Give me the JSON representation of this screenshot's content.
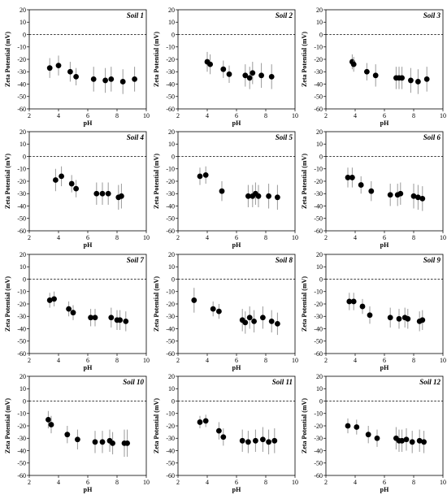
{
  "chart_data": [
    {
      "type": "scatter",
      "title": "Soil 1",
      "xlabel": "pH",
      "ylabel": "Zeta Potential (mV)",
      "xlim": [
        2,
        10
      ],
      "ylim": [
        -60,
        20
      ],
      "xticks": [
        2,
        4,
        6,
        8,
        10
      ],
      "yticks": [
        -60,
        -50,
        -40,
        -30,
        -20,
        -10,
        0,
        10,
        20
      ],
      "reference_line": 0,
      "points": [
        {
          "x": 3.4,
          "y": -27,
          "err": 8
        },
        {
          "x": 4.0,
          "y": -25,
          "err": 8
        },
        {
          "x": 4.8,
          "y": -30,
          "err": 8
        },
        {
          "x": 5.2,
          "y": -34,
          "err": 7
        },
        {
          "x": 6.4,
          "y": -36,
          "err": 10
        },
        {
          "x": 7.2,
          "y": -37,
          "err": 10
        },
        {
          "x": 7.6,
          "y": -36,
          "err": 10
        },
        {
          "x": 8.4,
          "y": -38,
          "err": 10
        },
        {
          "x": 9.2,
          "y": -36,
          "err": 10
        }
      ]
    },
    {
      "type": "scatter",
      "title": "Soil 2",
      "xlabel": "pH",
      "ylabel": "Zeta Potential (mV)",
      "xlim": [
        2,
        10
      ],
      "ylim": [
        -60,
        20
      ],
      "xticks": [
        2,
        4,
        6,
        8,
        10
      ],
      "yticks": [
        -60,
        -50,
        -40,
        -30,
        -20,
        -10,
        0,
        10,
        20
      ],
      "reference_line": 0,
      "points": [
        {
          "x": 4.0,
          "y": -22,
          "err": 8
        },
        {
          "x": 4.2,
          "y": -24,
          "err": 8
        },
        {
          "x": 5.1,
          "y": -28,
          "err": 7
        },
        {
          "x": 5.5,
          "y": -32,
          "err": 7
        },
        {
          "x": 6.6,
          "y": -33,
          "err": 9
        },
        {
          "x": 6.9,
          "y": -35,
          "err": 9
        },
        {
          "x": 7.1,
          "y": -31,
          "err": 9
        },
        {
          "x": 7.7,
          "y": -33,
          "err": 10
        },
        {
          "x": 8.4,
          "y": -34,
          "err": 10
        }
      ]
    },
    {
      "type": "scatter",
      "title": "Soil 3",
      "xlabel": "pH",
      "ylabel": "Zeta Potential (mV)",
      "xlim": [
        2,
        10
      ],
      "ylim": [
        -60,
        20
      ],
      "xticks": [
        2,
        4,
        6,
        8,
        10
      ],
      "yticks": [
        -60,
        -50,
        -40,
        -30,
        -20,
        -10,
        0,
        10,
        20
      ],
      "reference_line": 0,
      "points": [
        {
          "x": 3.8,
          "y": -22,
          "err": 6
        },
        {
          "x": 3.9,
          "y": -24,
          "err": 6
        },
        {
          "x": 4.8,
          "y": -30,
          "err": 7
        },
        {
          "x": 5.4,
          "y": -33,
          "err": 9
        },
        {
          "x": 6.8,
          "y": -35,
          "err": 9
        },
        {
          "x": 7.0,
          "y": -35,
          "err": 9
        },
        {
          "x": 7.2,
          "y": -35,
          "err": 9
        },
        {
          "x": 7.8,
          "y": -37,
          "err": 10
        },
        {
          "x": 8.3,
          "y": -38,
          "err": 10
        },
        {
          "x": 8.9,
          "y": -36,
          "err": 10
        }
      ]
    },
    {
      "type": "scatter",
      "title": "Soil 4",
      "xlabel": "pH",
      "ylabel": "Zeta Potential (mV)",
      "xlim": [
        2,
        10
      ],
      "ylim": [
        -60,
        20
      ],
      "xticks": [
        2,
        4,
        6,
        8,
        10
      ],
      "yticks": [
        -60,
        -50,
        -40,
        -30,
        -20,
        -10,
        0,
        10,
        20
      ],
      "reference_line": 0,
      "points": [
        {
          "x": 3.8,
          "y": -19,
          "err": 9
        },
        {
          "x": 4.2,
          "y": -16,
          "err": 8
        },
        {
          "x": 4.9,
          "y": -22,
          "err": 7
        },
        {
          "x": 5.2,
          "y": -26,
          "err": 7
        },
        {
          "x": 6.6,
          "y": -30,
          "err": 9
        },
        {
          "x": 7.0,
          "y": -30,
          "err": 9
        },
        {
          "x": 7.4,
          "y": -30,
          "err": 9
        },
        {
          "x": 8.1,
          "y": -33,
          "err": 10
        },
        {
          "x": 8.3,
          "y": -32,
          "err": 10
        }
      ]
    },
    {
      "type": "scatter",
      "title": "Soil 5",
      "xlabel": "pH",
      "ylabel": "Zeta Potential (mV)",
      "xlim": [
        2,
        10
      ],
      "ylim": [
        -60,
        20
      ],
      "xticks": [
        2,
        4,
        6,
        8,
        10
      ],
      "yticks": [
        -60,
        -50,
        -40,
        -30,
        -20,
        -10,
        0,
        10,
        20
      ],
      "reference_line": 0,
      "points": [
        {
          "x": 3.5,
          "y": -16,
          "err": 7
        },
        {
          "x": 3.9,
          "y": -15,
          "err": 7
        },
        {
          "x": 5.0,
          "y": -28,
          "err": 8
        },
        {
          "x": 6.8,
          "y": -32,
          "err": 9
        },
        {
          "x": 7.1,
          "y": -32,
          "err": 9
        },
        {
          "x": 7.3,
          "y": -30,
          "err": 9
        },
        {
          "x": 7.5,
          "y": -32,
          "err": 9
        },
        {
          "x": 8.2,
          "y": -32,
          "err": 10
        },
        {
          "x": 8.8,
          "y": -33,
          "err": 10
        }
      ]
    },
    {
      "type": "scatter",
      "title": "Soil 6",
      "xlabel": "pH",
      "ylabel": "Zeta Potential (mV)",
      "xlim": [
        2,
        10
      ],
      "ylim": [
        -60,
        20
      ],
      "xticks": [
        2,
        4,
        6,
        8,
        10
      ],
      "yticks": [
        -60,
        -50,
        -40,
        -30,
        -20,
        -10,
        0,
        10,
        20
      ],
      "reference_line": 0,
      "points": [
        {
          "x": 3.5,
          "y": -17,
          "err": 8
        },
        {
          "x": 3.8,
          "y": -17,
          "err": 8
        },
        {
          "x": 4.4,
          "y": -23,
          "err": 7
        },
        {
          "x": 5.1,
          "y": -28,
          "err": 8
        },
        {
          "x": 6.4,
          "y": -31,
          "err": 9
        },
        {
          "x": 6.9,
          "y": -31,
          "err": 9
        },
        {
          "x": 7.1,
          "y": -30,
          "err": 9
        },
        {
          "x": 8.0,
          "y": -32,
          "err": 10
        },
        {
          "x": 8.3,
          "y": -33,
          "err": 10
        },
        {
          "x": 8.6,
          "y": -34,
          "err": 10
        }
      ]
    },
    {
      "type": "scatter",
      "title": "Soil 7",
      "xlabel": "pH",
      "ylabel": "Zeta Potential (mV)",
      "xlim": [
        2,
        10
      ],
      "ylim": [
        -60,
        20
      ],
      "xticks": [
        2,
        4,
        6,
        8,
        10
      ],
      "yticks": [
        -60,
        -50,
        -40,
        -30,
        -20,
        -10,
        0,
        10,
        20
      ],
      "reference_line": 0,
      "points": [
        {
          "x": 3.4,
          "y": -17,
          "err": 6
        },
        {
          "x": 3.7,
          "y": -16,
          "err": 6
        },
        {
          "x": 4.7,
          "y": -24,
          "err": 6
        },
        {
          "x": 5.0,
          "y": -27,
          "err": 6
        },
        {
          "x": 6.2,
          "y": -31,
          "err": 7
        },
        {
          "x": 6.5,
          "y": -31,
          "err": 7
        },
        {
          "x": 7.6,
          "y": -31,
          "err": 8
        },
        {
          "x": 8.0,
          "y": -33,
          "err": 8
        },
        {
          "x": 8.2,
          "y": -33,
          "err": 8
        },
        {
          "x": 8.6,
          "y": -34,
          "err": 8
        }
      ]
    },
    {
      "type": "scatter",
      "title": "Soil 8",
      "xlabel": "pH",
      "ylabel": "Zeta Potential (mV)",
      "xlim": [
        2,
        10
      ],
      "ylim": [
        -60,
        20
      ],
      "xticks": [
        2,
        4,
        6,
        8,
        10
      ],
      "yticks": [
        -60,
        -50,
        -40,
        -30,
        -20,
        -10,
        0,
        10,
        20
      ],
      "reference_line": 0,
      "points": [
        {
          "x": 3.1,
          "y": -17,
          "err": 10
        },
        {
          "x": 4.4,
          "y": -24,
          "err": 6
        },
        {
          "x": 4.8,
          "y": -26,
          "err": 6
        },
        {
          "x": 6.4,
          "y": -33,
          "err": 9
        },
        {
          "x": 6.6,
          "y": -35,
          "err": 9
        },
        {
          "x": 6.9,
          "y": -31,
          "err": 9
        },
        {
          "x": 7.2,
          "y": -34,
          "err": 9
        },
        {
          "x": 7.8,
          "y": -31,
          "err": 9
        },
        {
          "x": 8.4,
          "y": -34,
          "err": 9
        },
        {
          "x": 8.8,
          "y": -36,
          "err": 9
        }
      ]
    },
    {
      "type": "scatter",
      "title": "Soil 9",
      "xlabel": "pH",
      "ylabel": "Zeta Potential (mV)",
      "xlim": [
        2,
        10
      ],
      "ylim": [
        -60,
        20
      ],
      "xticks": [
        2,
        4,
        6,
        8,
        10
      ],
      "yticks": [
        -60,
        -50,
        -40,
        -30,
        -20,
        -10,
        0,
        10,
        20
      ],
      "reference_line": 0,
      "points": [
        {
          "x": 3.6,
          "y": -18,
          "err": 7
        },
        {
          "x": 3.9,
          "y": -18,
          "err": 7
        },
        {
          "x": 4.5,
          "y": -22,
          "err": 6
        },
        {
          "x": 5.0,
          "y": -29,
          "err": 7
        },
        {
          "x": 6.4,
          "y": -31,
          "err": 8
        },
        {
          "x": 7.0,
          "y": -32,
          "err": 8
        },
        {
          "x": 7.4,
          "y": -31,
          "err": 8
        },
        {
          "x": 7.6,
          "y": -32,
          "err": 8
        },
        {
          "x": 8.4,
          "y": -34,
          "err": 8
        },
        {
          "x": 8.6,
          "y": -33,
          "err": 8
        }
      ]
    },
    {
      "type": "scatter",
      "title": "Soil 10",
      "xlabel": "pH",
      "ylabel": "Zeta Potential (mV)",
      "xlim": [
        2,
        10
      ],
      "ylim": [
        -60,
        20
      ],
      "xticks": [
        2,
        4,
        6,
        8,
        10
      ],
      "yticks": [
        -60,
        -50,
        -40,
        -30,
        -20,
        -10,
        0,
        10,
        20
      ],
      "reference_line": 0,
      "points": [
        {
          "x": 3.3,
          "y": -15,
          "err": 7
        },
        {
          "x": 3.5,
          "y": -19,
          "err": 7
        },
        {
          "x": 4.6,
          "y": -27,
          "err": 7
        },
        {
          "x": 5.3,
          "y": -31,
          "err": 8
        },
        {
          "x": 6.5,
          "y": -33,
          "err": 9
        },
        {
          "x": 7.0,
          "y": -33,
          "err": 9
        },
        {
          "x": 7.5,
          "y": -32,
          "err": 9
        },
        {
          "x": 7.7,
          "y": -34,
          "err": 9
        },
        {
          "x": 8.5,
          "y": -34,
          "err": 11
        },
        {
          "x": 8.7,
          "y": -34,
          "err": 11
        }
      ]
    },
    {
      "type": "scatter",
      "title": "Soil 11",
      "xlabel": "pH",
      "ylabel": "Zeta Potential (mV)",
      "xlim": [
        2,
        10
      ],
      "ylim": [
        -60,
        20
      ],
      "xticks": [
        2,
        4,
        6,
        8,
        10
      ],
      "yticks": [
        -60,
        -50,
        -40,
        -30,
        -20,
        -10,
        0,
        10,
        20
      ],
      "reference_line": 0,
      "points": [
        {
          "x": 3.5,
          "y": -17,
          "err": 5
        },
        {
          "x": 3.9,
          "y": -16,
          "err": 5
        },
        {
          "x": 4.8,
          "y": -24,
          "err": 7
        },
        {
          "x": 5.1,
          "y": -29,
          "err": 7
        },
        {
          "x": 6.4,
          "y": -32,
          "err": 9
        },
        {
          "x": 6.8,
          "y": -33,
          "err": 9
        },
        {
          "x": 7.3,
          "y": -32,
          "err": 9
        },
        {
          "x": 7.8,
          "y": -31,
          "err": 10
        },
        {
          "x": 8.2,
          "y": -33,
          "err": 10
        },
        {
          "x": 8.6,
          "y": -32,
          "err": 10
        }
      ]
    },
    {
      "type": "scatter",
      "title": "Soil 12",
      "xlabel": "pH",
      "ylabel": "Zeta Potential (mV)",
      "xlim": [
        2,
        10
      ],
      "ylim": [
        -60,
        20
      ],
      "xticks": [
        2,
        4,
        6,
        8,
        10
      ],
      "yticks": [
        -60,
        -50,
        -40,
        -30,
        -20,
        -10,
        0,
        10,
        20
      ],
      "reference_line": 0,
      "points": [
        {
          "x": 3.5,
          "y": -20,
          "err": 6
        },
        {
          "x": 4.1,
          "y": -21,
          "err": 6
        },
        {
          "x": 4.9,
          "y": -27,
          "err": 7
        },
        {
          "x": 5.5,
          "y": -30,
          "err": 7
        },
        {
          "x": 6.8,
          "y": -30,
          "err": 9
        },
        {
          "x": 7.0,
          "y": -32,
          "err": 9
        },
        {
          "x": 7.2,
          "y": -32,
          "err": 9
        },
        {
          "x": 7.5,
          "y": -31,
          "err": 9
        },
        {
          "x": 7.9,
          "y": -33,
          "err": 9
        },
        {
          "x": 8.4,
          "y": -32,
          "err": 9
        },
        {
          "x": 8.7,
          "y": -33,
          "err": 9
        }
      ]
    }
  ]
}
